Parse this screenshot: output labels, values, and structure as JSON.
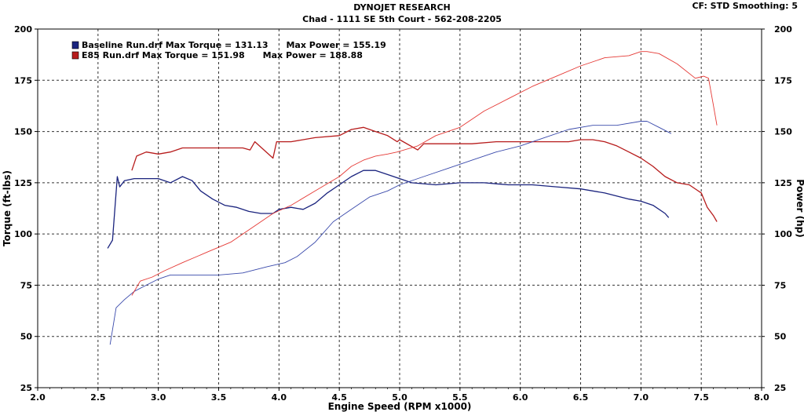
{
  "header": {
    "title": "DYNOJET RESEARCH",
    "subtitle": "Chad  -  1111 SE 5th Court  -  562-208-2205",
    "correction": "CF: STD  Smoothing: 5"
  },
  "colors": {
    "baseline": "#1a237e",
    "e85": "#b71c1c",
    "grid": "#333333"
  },
  "chart_data": {
    "type": "line",
    "title": "DYNOJET RESEARCH",
    "xlabel": "Engine Speed (RPM x1000)",
    "ylabel": "Torque (ft-lbs)",
    "y2label": "Power (hp)",
    "xlim": [
      2.0,
      8.0
    ],
    "ylim": [
      25,
      200
    ],
    "y2lim": [
      25,
      200
    ],
    "xticks": [
      "2.0",
      "2.5",
      "3.0",
      "3.5",
      "4.0",
      "4.5",
      "5.0",
      "5.5",
      "6.0",
      "6.5",
      "7.0",
      "7.5",
      "8.0"
    ],
    "yticks": [
      "25",
      "50",
      "75",
      "100",
      "125",
      "150",
      "175",
      "200"
    ],
    "grid": true,
    "legend": {
      "placement": "top-left",
      "entries": [
        {
          "file": "Baseline Run.drf",
          "text": "Baseline Run.drf Max Torque = 131.13      Max Power = 155.19",
          "color": "#1a237e"
        },
        {
          "file": "E85 Run.drf",
          "text": "E85 Run.drf Max Torque = 151.98      Max Power = 188.88",
          "color": "#b71c1c"
        }
      ]
    },
    "series": [
      {
        "name": "Baseline Run.drf",
        "measure": "Torque",
        "color": "#1a237e",
        "x": [
          2.58,
          2.62,
          2.66,
          2.68,
          2.72,
          2.8,
          2.9,
          3.0,
          3.1,
          3.2,
          3.28,
          3.35,
          3.45,
          3.55,
          3.65,
          3.75,
          3.85,
          3.95,
          4.0,
          4.1,
          4.2,
          4.3,
          4.4,
          4.5,
          4.6,
          4.7,
          4.8,
          4.9,
          5.0,
          5.1,
          5.3,
          5.5,
          5.7,
          5.9,
          6.1,
          6.3,
          6.5,
          6.7,
          6.9,
          7.0,
          7.1,
          7.2,
          7.23
        ],
        "y": [
          93,
          97,
          128,
          123,
          126,
          127,
          127,
          127,
          125,
          128,
          126,
          121,
          117,
          114,
          113,
          111,
          110,
          110,
          112,
          113,
          112,
          115,
          120,
          124,
          128,
          131,
          131,
          129,
          127,
          125,
          124,
          125,
          125,
          124,
          124,
          123,
          122,
          120,
          117,
          116,
          114,
          110,
          108
        ]
      },
      {
        "name": "E85 Run.drf",
        "measure": "Torque",
        "color": "#b71c1c",
        "x": [
          2.78,
          2.82,
          2.9,
          3.0,
          3.1,
          3.2,
          3.4,
          3.6,
          3.7,
          3.76,
          3.8,
          3.95,
          3.98,
          4.1,
          4.3,
          4.5,
          4.6,
          4.7,
          4.8,
          4.9,
          4.98,
          5.0,
          5.15,
          5.2,
          5.4,
          5.6,
          5.8,
          6.0,
          6.2,
          6.4,
          6.5,
          6.6,
          6.7,
          6.8,
          6.9,
          7.0,
          7.1,
          7.2,
          7.3,
          7.4,
          7.5,
          7.55,
          7.6,
          7.63
        ],
        "y": [
          131,
          138,
          140,
          139,
          140,
          142,
          142,
          142,
          142,
          141,
          145,
          137,
          145,
          145,
          147,
          148,
          151,
          152,
          150,
          148,
          145,
          146,
          141,
          144,
          144,
          144,
          145,
          145,
          145,
          145,
          146,
          146,
          145,
          143,
          140,
          137,
          133,
          128,
          125,
          124,
          120,
          113,
          109,
          106
        ]
      },
      {
        "name": "Baseline Run.drf",
        "measure": "Power",
        "color": "#3949ab",
        "x": [
          2.6,
          2.65,
          2.72,
          2.8,
          2.9,
          3.0,
          3.1,
          3.3,
          3.5,
          3.7,
          3.9,
          4.05,
          4.15,
          4.3,
          4.45,
          4.6,
          4.75,
          4.9,
          5.0,
          5.2,
          5.4,
          5.6,
          5.8,
          6.0,
          6.2,
          6.4,
          6.6,
          6.8,
          7.0,
          7.05,
          7.15,
          7.25
        ],
        "y": [
          46,
          64,
          68,
          72,
          75,
          78,
          80,
          80,
          80,
          81,
          84,
          86,
          89,
          96,
          106,
          112,
          118,
          121,
          124,
          128,
          132,
          136,
          140,
          143,
          147,
          151,
          153,
          153,
          155,
          155,
          152,
          149
        ]
      },
      {
        "name": "E85 Run.drf",
        "measure": "Power",
        "color": "#e53935",
        "x": [
          2.78,
          2.85,
          2.95,
          3.05,
          3.2,
          3.4,
          3.6,
          3.8,
          3.95,
          4.1,
          4.3,
          4.5,
          4.6,
          4.7,
          4.8,
          4.9,
          4.98,
          5.15,
          5.3,
          5.5,
          5.7,
          5.9,
          6.1,
          6.3,
          6.5,
          6.7,
          6.9,
          7.0,
          7.05,
          7.15,
          7.3,
          7.45,
          7.52,
          7.56,
          7.6,
          7.63
        ],
        "y": [
          70,
          77,
          79,
          82,
          86,
          91,
          96,
          104,
          110,
          114,
          121,
          128,
          133,
          136,
          138,
          139,
          140,
          143,
          148,
          152,
          160,
          166,
          172,
          177,
          182,
          186,
          187,
          189,
          189,
          188,
          183,
          176,
          177,
          176,
          163,
          153
        ]
      }
    ]
  }
}
